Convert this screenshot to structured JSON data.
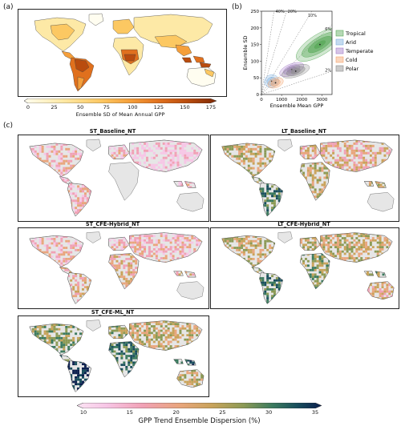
{
  "panels": {
    "a": "(a)",
    "b": "(b)",
    "c": "(c)"
  },
  "panel_a": {
    "colorbar_ticks": [
      "0",
      "25",
      "50",
      "75",
      "100",
      "125",
      "150",
      "175"
    ],
    "colorbar_label": "Ensemble SD of Mean Annual GPP",
    "colors": [
      "#fffdf0",
      "#fde9a6",
      "#fcc862",
      "#f59f3a",
      "#e0701d",
      "#b94c0e",
      "#7f2a06"
    ]
  },
  "panel_c": {
    "maps": [
      {
        "title": "ST_Baseline_NT"
      },
      {
        "title": "LT_Baseline_NT"
      },
      {
        "title": "ST_CFE-Hybrid_NT"
      },
      {
        "title": "LT_CFE-Hybrid_NT"
      },
      {
        "title": "ST_CFE-ML_NT"
      }
    ],
    "colorbar_ticks": [
      "10",
      "15",
      "20",
      "25",
      "30",
      "35"
    ],
    "colorbar_label": "GPP Trend Ensemble Dispersion (%)",
    "colors": [
      "#f7c6e6",
      "#f1a1b5",
      "#e9a57c",
      "#c9a35a",
      "#8c9a55",
      "#3b7a5e",
      "#184e5c",
      "#0b1f4e"
    ]
  },
  "chart_data": {
    "type": "scatter",
    "title": "",
    "xlabel": "Ensemble Mean GPP",
    "ylabel": "Ensemble SD",
    "xlim": [
      0,
      3500
    ],
    "ylim": [
      0,
      250
    ],
    "x_ticks": [
      0,
      1000,
      2000,
      3000
    ],
    "y_ticks": [
      0,
      50,
      100,
      150,
      200,
      250
    ],
    "reference_lines": [
      {
        "label": "40%",
        "slope_pct": 40
      },
      {
        "label": "20%",
        "slope_pct": 20
      },
      {
        "label": "10%",
        "slope_pct": 10
      },
      {
        "label": "6%",
        "slope_pct": 6
      },
      {
        "label": "2%",
        "slope_pct": 2
      }
    ],
    "series": [
      {
        "name": "Tropical",
        "color": "#5aa95a",
        "center": [
          2900,
          150
        ]
      },
      {
        "name": "Arid",
        "color": "#7fb0de",
        "center": [
          500,
          40
        ]
      },
      {
        "name": "Temperate",
        "color": "#a57fc9",
        "center": [
          1500,
          75
        ]
      },
      {
        "name": "Cold",
        "color": "#f3a46e",
        "center": [
          700,
          35
        ]
      },
      {
        "name": "Polar",
        "color": "#8c8c8c",
        "center": [
          1700,
          70
        ]
      }
    ],
    "legend_position": "right"
  }
}
